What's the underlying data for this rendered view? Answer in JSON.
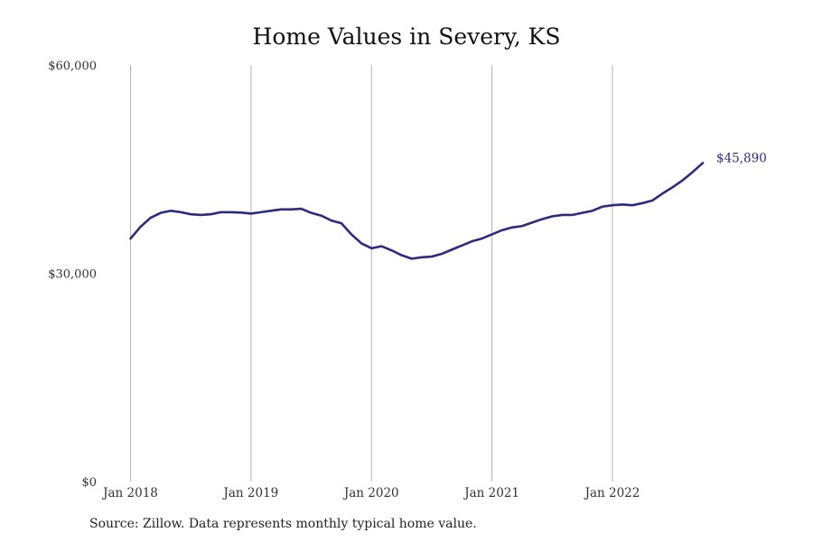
{
  "title": "Home Values in Severy, KS",
  "source": "Source: Zillow. Data represents monthly typical home value.",
  "colors": {
    "line": "#2e2a7e",
    "grid": "#b3b3b3",
    "text": "#333333"
  },
  "chart_data": {
    "type": "line",
    "title": "Home Values in Severy, KS",
    "xlabel": "",
    "ylabel": "",
    "ylim": [
      0,
      60000
    ],
    "y_ticks": [
      {
        "value": 0,
        "label": "$0"
      },
      {
        "value": 30000,
        "label": "$30,000"
      },
      {
        "value": 60000,
        "label": "$60,000"
      }
    ],
    "x_ticks": [
      {
        "date": "2018-01",
        "label": "Jan 2018"
      },
      {
        "date": "2019-01",
        "label": "Jan 2019"
      },
      {
        "date": "2020-01",
        "label": "Jan 2020"
      },
      {
        "date": "2021-01",
        "label": "Jan 2021"
      },
      {
        "date": "2022-01",
        "label": "Jan 2022"
      }
    ],
    "grid": "vertical at x ticks",
    "legend": "none",
    "end_label": "$45,890",
    "series": [
      {
        "x": [
          "2018-01",
          "2018-02",
          "2018-03",
          "2018-04",
          "2018-05",
          "2018-06",
          "2018-07",
          "2018-08",
          "2018-09",
          "2018-10",
          "2018-11",
          "2018-12",
          "2019-01",
          "2019-02",
          "2019-03",
          "2019-04",
          "2019-05",
          "2019-06",
          "2019-07",
          "2019-08",
          "2019-09",
          "2019-10",
          "2019-11",
          "2019-12",
          "2020-01",
          "2020-02",
          "2020-03",
          "2020-04",
          "2020-05",
          "2020-06",
          "2020-07",
          "2020-08",
          "2020-09",
          "2020-10",
          "2020-11",
          "2020-12",
          "2021-01",
          "2021-02",
          "2021-03",
          "2021-04",
          "2021-05",
          "2021-06",
          "2021-07",
          "2021-08",
          "2021-09",
          "2021-10",
          "2021-11",
          "2021-12",
          "2022-01",
          "2022-02",
          "2022-03",
          "2022-04",
          "2022-05",
          "2022-06",
          "2022-07",
          "2022-08",
          "2022-09",
          "2022-10"
        ],
        "values": [
          35000,
          36700,
          38000,
          38700,
          39000,
          38800,
          38500,
          38400,
          38500,
          38800,
          38800,
          38750,
          38600,
          38800,
          39000,
          39200,
          39200,
          39300,
          38700,
          38300,
          37600,
          37200,
          35600,
          34300,
          33600,
          33900,
          33300,
          32600,
          32100,
          32300,
          32400,
          32800,
          33400,
          34000,
          34600,
          35000,
          35600,
          36200,
          36600,
          36800,
          37300,
          37800,
          38200,
          38400,
          38400,
          38700,
          39000,
          39600,
          39800,
          39900,
          39800,
          40100,
          40500,
          41500,
          42400,
          43400,
          44600,
          45890
        ]
      }
    ]
  }
}
